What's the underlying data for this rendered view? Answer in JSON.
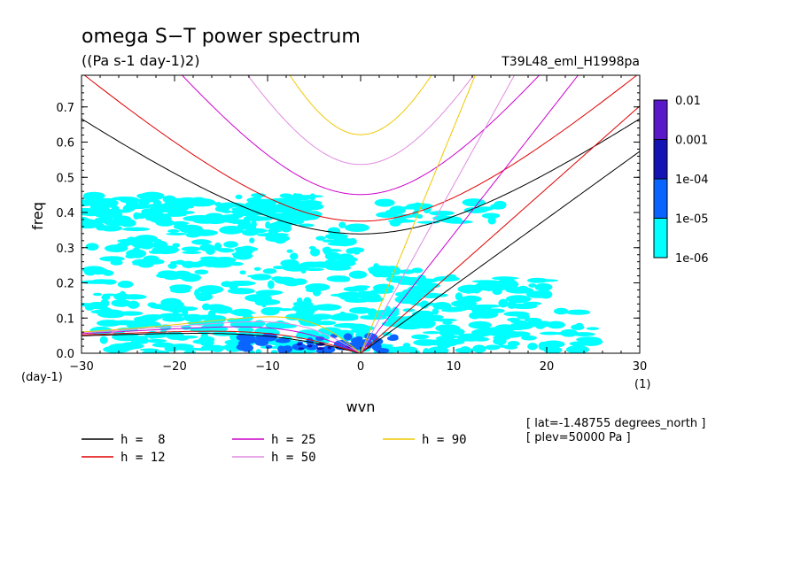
{
  "chart_data": {
    "type": "contour",
    "title": "omega S−T power spectrum",
    "subtitle": "((Pa s-1 day-1)2)",
    "run_label": "T39L48_eml_H1998pa",
    "xlabel": "wvn",
    "ylabel": "freq",
    "x_unit": "(1)",
    "y_unit": "(day-1)",
    "xlim": [
      -30,
      30
    ],
    "ylim": [
      0,
      0.79
    ],
    "xticks": [
      -30,
      -20,
      -10,
      0,
      10,
      20,
      30
    ],
    "xtick_labels": [
      "−30",
      "−20",
      "−10",
      "0",
      "10",
      "20",
      "30"
    ],
    "yticks": [
      0.0,
      0.1,
      0.2,
      0.3,
      0.4,
      0.5,
      0.6,
      0.7
    ],
    "ytick_labels": [
      "0.0",
      "0.1",
      "0.2",
      "0.3",
      "0.4",
      "0.5",
      "0.6",
      "0.7"
    ],
    "colorbar": {
      "levels": [
        "0.01",
        "0.001",
        "1e-04",
        "1e-05",
        "1e-06"
      ],
      "colors": [
        "#5a18c8",
        "#1414b4",
        "#0a64ff",
        "#00ffff"
      ]
    },
    "dispersion_curves": [
      {
        "label": "h =  8",
        "h": 8,
        "color": "#000000"
      },
      {
        "label": "h = 12",
        "h": 12,
        "color": "#e00000"
      },
      {
        "label": "h = 25",
        "h": 25,
        "color": "#cc00cc"
      },
      {
        "label": "h = 50",
        "h": 50,
        "color": "#e08ce0"
      },
      {
        "label": "h = 90",
        "h": 90,
        "color": "#f0c800"
      }
    ],
    "info": [
      "[ lat=-1.48755 degrees_north ]",
      "[ plev=50000 Pa ]"
    ]
  }
}
